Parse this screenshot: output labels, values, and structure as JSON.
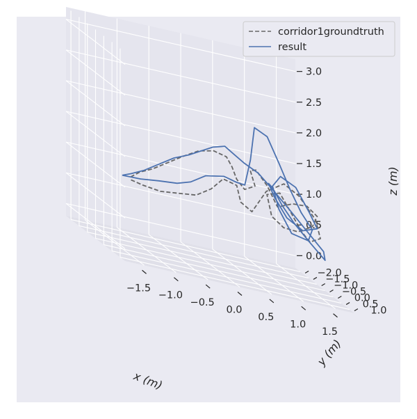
{
  "chart_data": {
    "type": "line",
    "projection": "3d",
    "xlabel": "x (m)",
    "ylabel": "y (m)",
    "zlabel": "z (m)",
    "xticks": [
      "−1.5",
      "−1.0",
      "−0.5",
      "0.0",
      "0.5",
      "1.0",
      "1.5"
    ],
    "yticks": [
      "−2.0",
      "−1.5",
      "−1.0",
      "−0.5",
      "0.0",
      "0.5",
      "1.0"
    ],
    "zticks": [
      "0.0",
      "0.5",
      "1.0",
      "1.5",
      "2.0",
      "2.5",
      "3.0"
    ],
    "xlim": [
      -1.8,
      1.8
    ],
    "ylim": [
      -2.3,
      1.3
    ],
    "zlim": [
      -0.2,
      3.2
    ],
    "grid": true,
    "legend_position": "top-right",
    "series": [
      {
        "name": "corridor1groundtruth",
        "style": "dashed",
        "color": "#666666",
        "x": [
          -1.45,
          -1.25,
          -0.95,
          -0.65,
          -0.35,
          -0.1,
          0.1,
          0.3,
          0.35,
          0.5,
          0.7,
          0.95,
          1.2,
          1.5,
          1.6,
          1.45,
          1.3,
          1.1,
          0.95,
          0.8,
          0.9,
          1.1,
          1.3,
          1.5,
          1.55,
          1.35,
          1.1,
          0.85,
          0.7,
          0.55,
          0.5,
          0.6,
          0.45,
          0.3,
          0.2,
          0.1,
          -0.1,
          -0.35,
          -0.6,
          -0.85,
          -1.1,
          -1.3,
          -1.45
        ],
        "y": [
          0.3,
          0.25,
          0.15,
          0.05,
          0.0,
          -0.05,
          -0.1,
          -0.05,
          0.0,
          0.1,
          0.2,
          0.3,
          0.25,
          0.1,
          0.0,
          -0.05,
          0.0,
          0.1,
          0.05,
          -0.15,
          -0.25,
          -0.3,
          -0.2,
          -0.1,
          0.0,
          0.15,
          0.25,
          0.3,
          0.25,
          0.15,
          0.0,
          -0.1,
          -0.15,
          -0.05,
          0.05,
          0.1,
          0.1,
          0.15,
          0.15,
          0.2,
          0.25,
          0.25,
          0.3
        ],
        "z": [
          1.0,
          0.95,
          0.9,
          0.92,
          0.95,
          1.1,
          1.3,
          1.25,
          1.0,
          0.9,
          1.3,
          1.5,
          1.35,
          1.0,
          0.7,
          0.6,
          0.75,
          1.05,
          1.3,
          1.2,
          0.85,
          0.7,
          0.7,
          0.85,
          1.05,
          1.2,
          1.2,
          1.1,
          1.4,
          1.6,
          1.55,
          1.3,
          1.2,
          1.35,
          1.55,
          1.7,
          1.75,
          1.7,
          1.55,
          1.4,
          1.25,
          1.15,
          1.05
        ]
      },
      {
        "name": "result",
        "style": "solid",
        "color": "#4c72b0",
        "x": [
          -1.6,
          -1.3,
          -1.0,
          -0.7,
          -0.45,
          -0.2,
          0.1,
          0.3,
          0.4,
          0.45,
          0.5,
          0.7,
          0.9,
          1.1,
          1.3,
          1.5,
          1.45,
          1.2,
          1.0,
          0.9,
          1.0,
          1.2,
          1.4,
          1.55,
          1.35,
          1.1,
          0.9,
          0.8,
          0.85,
          1.0,
          1.2,
          1.45,
          1.7,
          1.65,
          1.35,
          1.05,
          0.8,
          0.6,
          0.4,
          0.25,
          0.1,
          -0.1,
          -0.3,
          -0.5,
          -0.75,
          -1.0,
          -1.25,
          -1.45,
          -1.6
        ],
        "y": [
          0.35,
          0.3,
          0.25,
          0.2,
          0.05,
          0.0,
          -0.05,
          -0.05,
          0.05,
          0.2,
          0.25,
          0.25,
          0.2,
          0.1,
          0.0,
          -0.1,
          -0.15,
          -0.2,
          -0.2,
          -0.2,
          -0.1,
          0.05,
          0.1,
          0.0,
          -0.1,
          -0.1,
          -0.1,
          -0.05,
          0.0,
          0.0,
          -0.05,
          -0.15,
          -0.1,
          0.0,
          0.1,
          0.2,
          0.2,
          0.1,
          0.0,
          0.0,
          0.0,
          0.05,
          0.1,
          0.15,
          0.2,
          0.25,
          0.3,
          0.3,
          0.35
        ],
        "z": [
          1.05,
          1.05,
          1.08,
          1.1,
          1.15,
          1.3,
          1.35,
          1.3,
          1.3,
          1.75,
          2.3,
          2.2,
          1.8,
          1.4,
          1.05,
          0.8,
          0.6,
          0.65,
          1.0,
          1.35,
          1.55,
          1.45,
          1.1,
          0.85,
          0.75,
          0.9,
          1.2,
          1.4,
          1.35,
          1.1,
          0.85,
          0.6,
          0.35,
          0.5,
          0.8,
          1.1,
          1.35,
          1.55,
          1.65,
          1.75,
          1.85,
          1.8,
          1.7,
          1.6,
          1.5,
          1.35,
          1.2,
          1.1,
          1.05
        ]
      }
    ]
  }
}
